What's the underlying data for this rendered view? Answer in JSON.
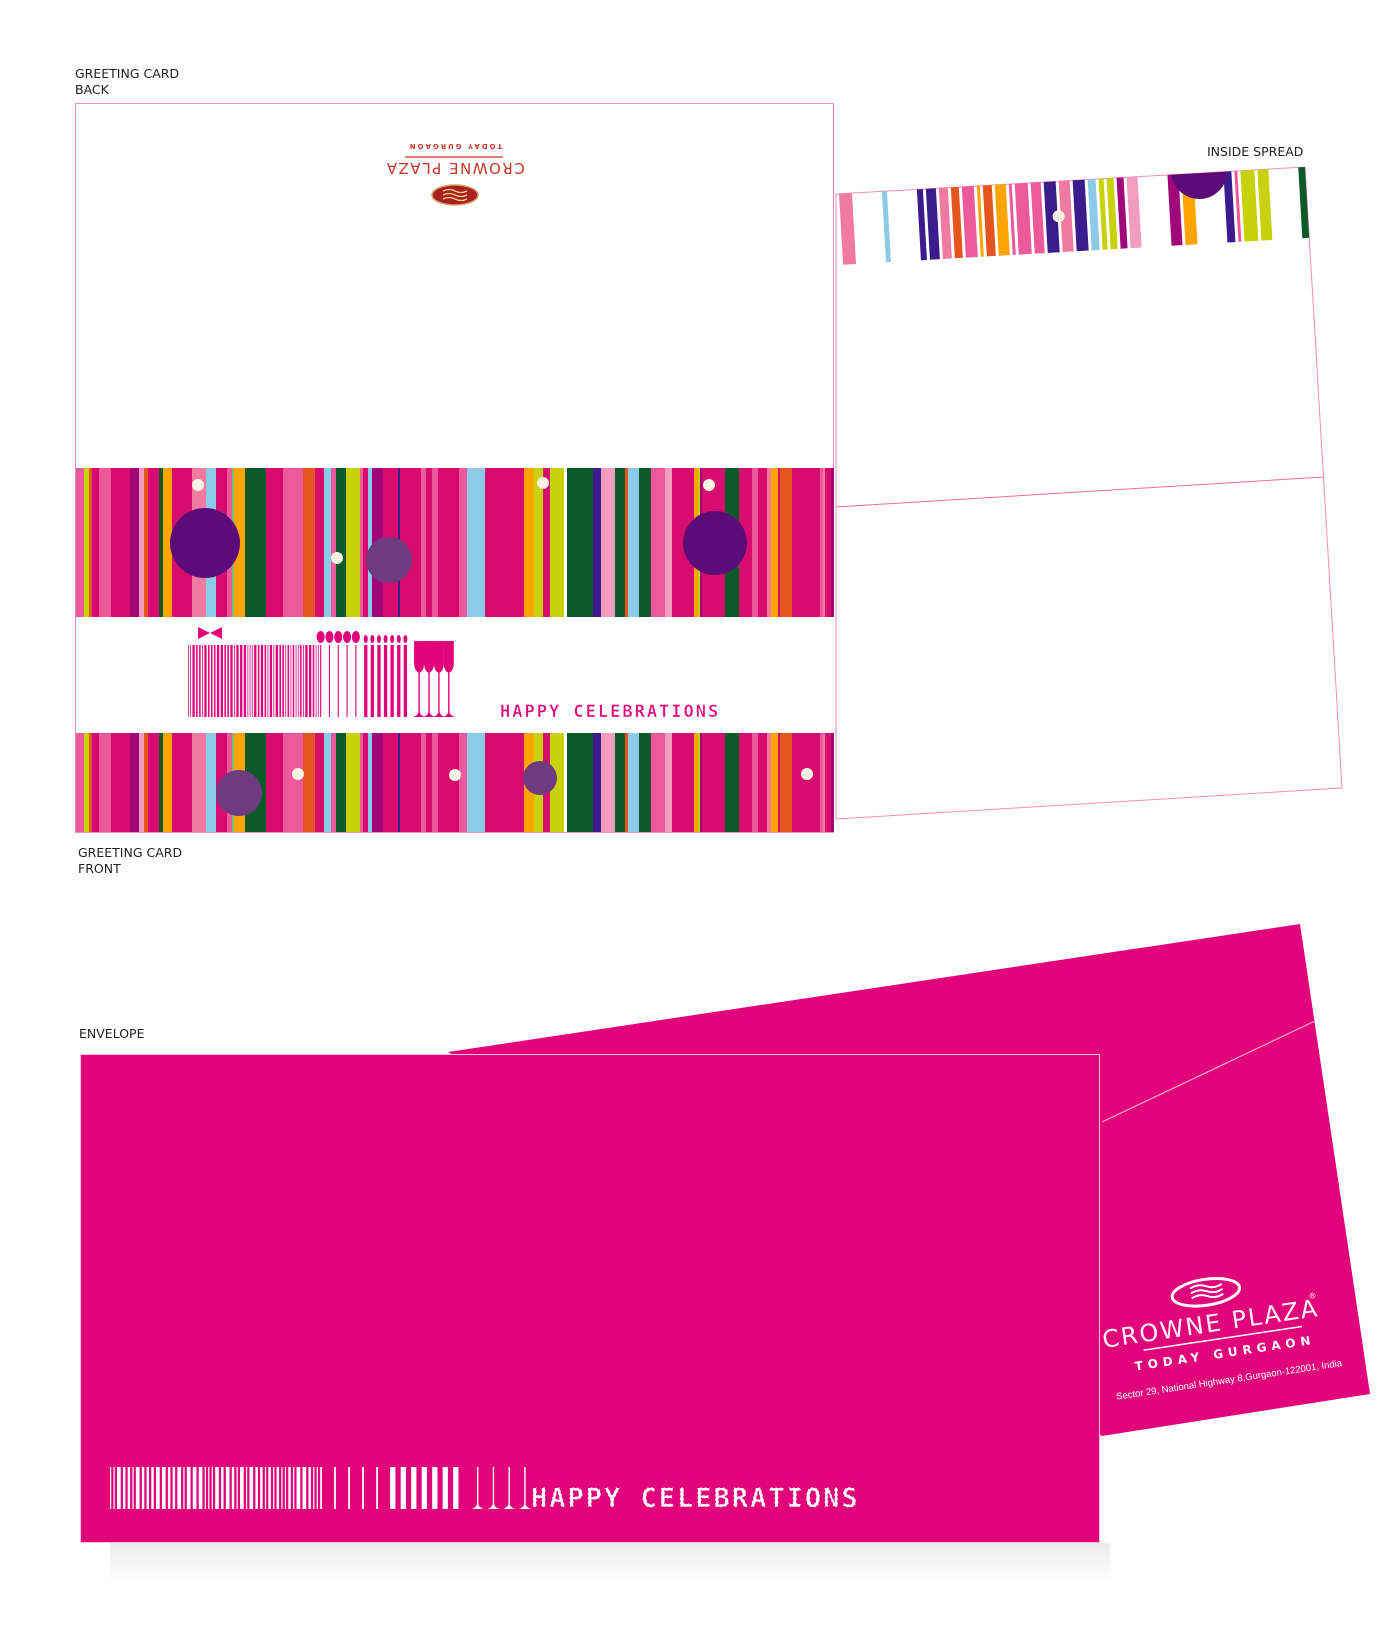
{
  "labels": {
    "card_back_line1": "GREETING CARD",
    "card_back_line2": "BACK",
    "card_front_line1": "GREETING CARD",
    "card_front_line2": "FRONT",
    "inside_spread": "INSIDE SPREAD",
    "envelope": "ENVELOPE"
  },
  "brand": {
    "name": "CROWNE PLAZA",
    "registered": "®",
    "subtitle": "TODAY GURGAON",
    "address": "Sector 29, National Highway 8,Gurgaon-122001, India",
    "emblem_icon": "crowne-plaza-flag-emblem"
  },
  "tagline": "HAPPY CELEBRATIONS",
  "colors": {
    "magenta": "#e2037a",
    "card_pink": "#d80b6e",
    "light_pink": "#ec5a9b",
    "purple": "#5c0c78",
    "logo_red": "#c8362a",
    "outline": "#f38fb8"
  }
}
